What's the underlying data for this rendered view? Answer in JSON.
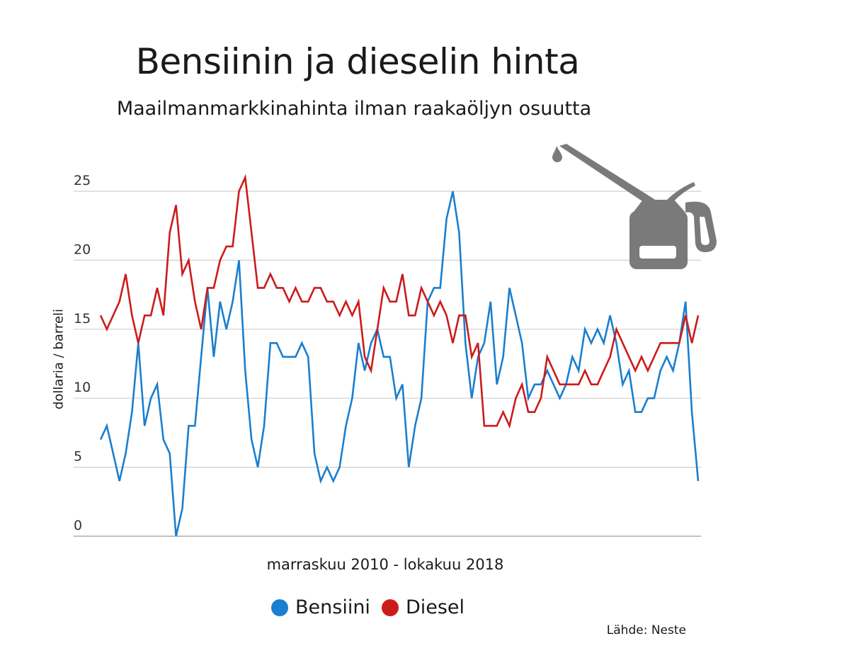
{
  "chart_data": {
    "type": "line",
    "title": "Bensiinin ja dieselin hinta",
    "subtitle": "Maailmanmarkkinahinta ilman raakaöljyn osuutta",
    "xlabel": "marraskuu 2010 - lokakuu 2018",
    "ylabel": "dollaria / barreli",
    "ylim": [
      0,
      25
    ],
    "yticks": [
      "0",
      "5",
      "10",
      "15",
      "20",
      "25"
    ],
    "grid": true,
    "legend_position": "bottom",
    "source": "Lähde: Neste",
    "series": [
      {
        "name": "Bensiini",
        "color": "#1a7fcf",
        "values": [
          7,
          8,
          6,
          4,
          6,
          9,
          14,
          8,
          10,
          11,
          7,
          6,
          0,
          2,
          8,
          8,
          13,
          18,
          13,
          17,
          15,
          17,
          20,
          12,
          7,
          5,
          8,
          14,
          14,
          13,
          13,
          13,
          14,
          13,
          6,
          4,
          5,
          4,
          5,
          8,
          10,
          14,
          12,
          14,
          15,
          13,
          13,
          10,
          11,
          5,
          8,
          10,
          17,
          18,
          18,
          23,
          25,
          22,
          14,
          10,
          13,
          14,
          17,
          11,
          13,
          18,
          16,
          14,
          10,
          11,
          11,
          12,
          11,
          10,
          11,
          13,
          12,
          15,
          14,
          15,
          14,
          16,
          14,
          11,
          12,
          9,
          9,
          10,
          10,
          12,
          13,
          12,
          14,
          17,
          9,
          4
        ]
      },
      {
        "name": "Diesel",
        "color": "#cc1b1b",
        "values": [
          16,
          15,
          16,
          17,
          19,
          16,
          14,
          16,
          16,
          18,
          16,
          22,
          24,
          19,
          20,
          17,
          15,
          18,
          18,
          20,
          21,
          21,
          25,
          26,
          22,
          18,
          18,
          19,
          18,
          18,
          17,
          18,
          17,
          17,
          18,
          18,
          17,
          17,
          16,
          17,
          16,
          17,
          13,
          12,
          15,
          18,
          17,
          17,
          19,
          16,
          16,
          18,
          17,
          16,
          17,
          16,
          14,
          16,
          16,
          13,
          14,
          8,
          8,
          8,
          9,
          8,
          10,
          11,
          9,
          9,
          10,
          13,
          12,
          11,
          11,
          11,
          11,
          12,
          11,
          11,
          12,
          13,
          15,
          14,
          13,
          12,
          13,
          12,
          13,
          14,
          14,
          14,
          14,
          16,
          14,
          16
        ]
      }
    ]
  },
  "icon": "oil-can-icon"
}
